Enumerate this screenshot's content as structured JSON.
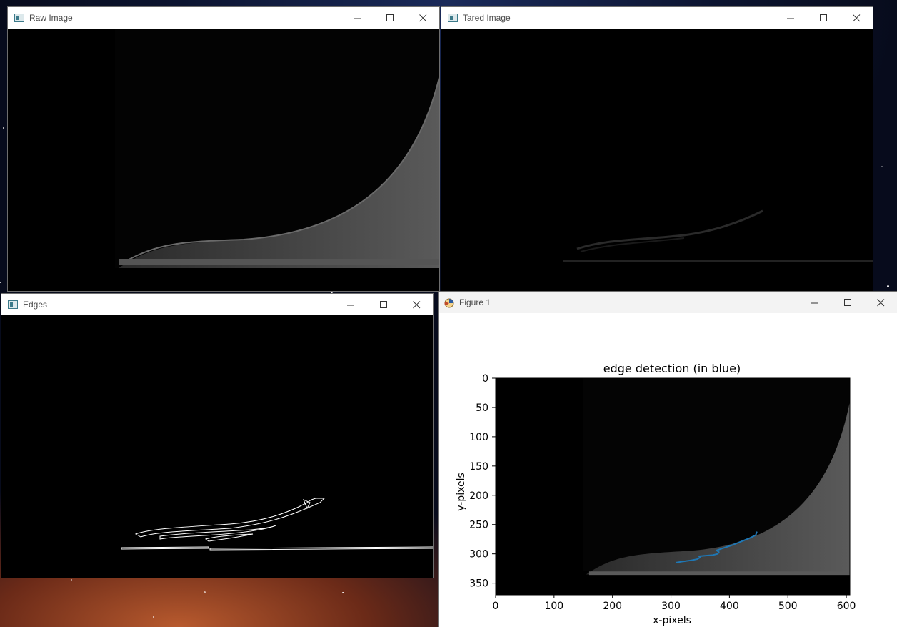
{
  "windows": {
    "raw": {
      "title": "Raw Image"
    },
    "tared": {
      "title": "Tared Image"
    },
    "edges": {
      "title": "Edges"
    },
    "figure": {
      "title": "Figure 1"
    }
  },
  "controls": {
    "minimize": "minimize-icon",
    "maximize": "maximize-icon",
    "close": "close-icon"
  },
  "colors": {
    "edge_line": "#1f77b4",
    "window_frame": "#6e6e6e"
  },
  "chart_data": {
    "type": "line",
    "title": "edge detection (in blue)",
    "xlabel": "x-pixels",
    "ylabel": "y-pixels",
    "xlim": [
      0,
      606
    ],
    "ylim": [
      370,
      0
    ],
    "xticks": [
      0,
      100,
      200,
      300,
      400,
      500,
      600
    ],
    "yticks": [
      0,
      50,
      100,
      150,
      200,
      250,
      300,
      350
    ],
    "background_image": "grayscale-raw-frame",
    "series": [
      {
        "color": "#1f77b4",
        "x": [
          308,
          320,
          335,
          345,
          350,
          348,
          360,
          372,
          380,
          382,
          378,
          390,
          405,
          420,
          435,
          445,
          447
        ],
        "y": [
          315,
          313,
          311,
          309,
          306,
          304,
          303,
          302,
          300,
          297,
          294,
          290,
          285,
          279,
          273,
          268,
          262
        ]
      }
    ],
    "grid": false
  }
}
